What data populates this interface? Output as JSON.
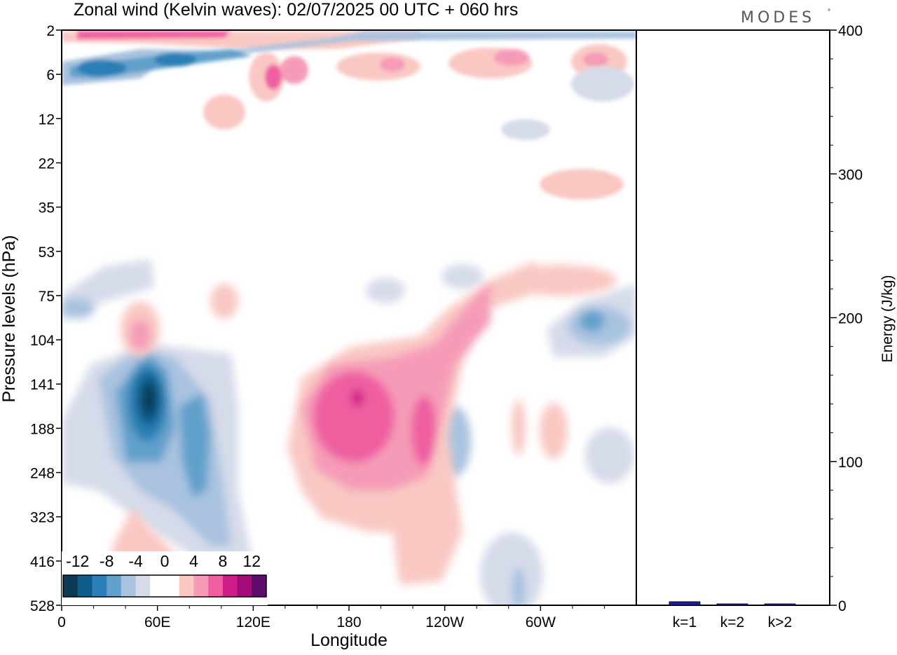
{
  "title": "Zonal wind (Kelvin waves):  02/07/2025  00 UTC  + 060 hrs",
  "brand": "MODES",
  "brand_mark": "°",
  "chart_data": [
    {
      "type": "heatmap",
      "title": "Zonal wind (Kelvin waves):  02/07/2025  00 UTC  + 060 hrs",
      "xlabel": "Longitude",
      "ylabel": "Pressure levels (hPa)",
      "x_ticks": [
        "0",
        "60E",
        "120E",
        "180",
        "120W",
        "60W"
      ],
      "y_ticks": [
        "2",
        "6",
        "12",
        "22",
        "35",
        "53",
        "75",
        "104",
        "141",
        "188",
        "248",
        "323",
        "416",
        "528"
      ],
      "y_scale": "log-pressure",
      "colorbar": {
        "labels": [
          "-12",
          "-8",
          "-4",
          "0",
          "4",
          "8",
          "12"
        ],
        "colors": [
          "#0c3954",
          "#0e5d8a",
          "#2a7fb6",
          "#62a0cc",
          "#a9c3df",
          "#d6dbea",
          "#ffffff",
          "#ffffff",
          "#f9c8c3",
          "#f59bb8",
          "#ef5fa0",
          "#cf1d87",
          "#a10c78",
          "#5e0c6b"
        ]
      },
      "features": [
        {
          "sign": "negative",
          "min_value": -14,
          "lon_center": "55E",
          "level_center": "141 hPa"
        },
        {
          "sign": "positive",
          "max_value": 10,
          "lon_center": "180",
          "level_center": "160 hPa"
        },
        {
          "sign": "negative",
          "min_value": -8,
          "lon_center": "20E",
          "level_center": "6 hPa"
        },
        {
          "sign": "positive",
          "max_value": 8,
          "lon_center": "60W",
          "level_center": "5 hPa"
        },
        {
          "sign": "negative",
          "min_value": -6,
          "lon_center": "30W",
          "level_center": "115 hPa"
        }
      ]
    },
    {
      "type": "bar",
      "categories": [
        "k=1",
        "k=2",
        "k>2"
      ],
      "values": [
        2,
        0.5,
        0.5
      ],
      "colors": [
        "#1a1aa6",
        "#1a1aa6",
        "#1a1aa6"
      ],
      "ylabel": "Energy (J/kg)",
      "y_ticks": [
        "0",
        "100",
        "200",
        "300",
        "400"
      ],
      "ylim": [
        0,
        400
      ]
    }
  ]
}
